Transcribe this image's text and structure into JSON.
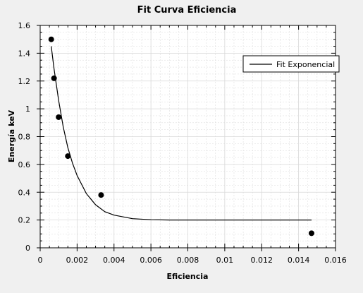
{
  "chart_data": {
    "type": "scatter",
    "title": "Fit Curva Eficiencia",
    "xlabel": "Eficiencia",
    "ylabel": "Energía keV",
    "xlim": [
      0,
      0.016
    ],
    "ylim": [
      0,
      1.6
    ],
    "x_ticks": [
      "0",
      "0.002",
      "0.004",
      "0.006",
      "0.008",
      "0.01",
      "0.012",
      "0.014",
      "0.016"
    ],
    "y_ticks": [
      "0",
      "0.2",
      "0.4",
      "0.6",
      "0.8",
      "1",
      "1.2",
      "1.4",
      "1.6"
    ],
    "grid": true,
    "legend_position": "top-right",
    "legend": [
      "Fit Exponencial"
    ],
    "points": [
      {
        "x": 0.0006,
        "y": 1.5
      },
      {
        "x": 0.00075,
        "y": 1.22
      },
      {
        "x": 0.001,
        "y": 0.94
      },
      {
        "x": 0.0015,
        "y": 0.66
      },
      {
        "x": 0.0033,
        "y": 0.38
      },
      {
        "x": 0.0147,
        "y": 0.105
      }
    ],
    "fit": {
      "name": "Fit Exponencial",
      "x": [
        0.0006,
        0.00075,
        0.001,
        0.00125,
        0.0015,
        0.00175,
        0.002,
        0.0025,
        0.003,
        0.0035,
        0.004,
        0.005,
        0.006,
        0.007,
        0.008,
        0.01,
        0.012,
        0.0147
      ],
      "y": [
        1.45,
        1.29,
        1.06,
        0.87,
        0.72,
        0.61,
        0.52,
        0.39,
        0.31,
        0.26,
        0.235,
        0.21,
        0.202,
        0.2,
        0.2,
        0.2,
        0.2,
        0.2
      ]
    }
  },
  "colors": {
    "background": "#f0f0f0",
    "plot_background": "#ffffff",
    "grid": "#d8d8d8",
    "series": "#000000"
  }
}
